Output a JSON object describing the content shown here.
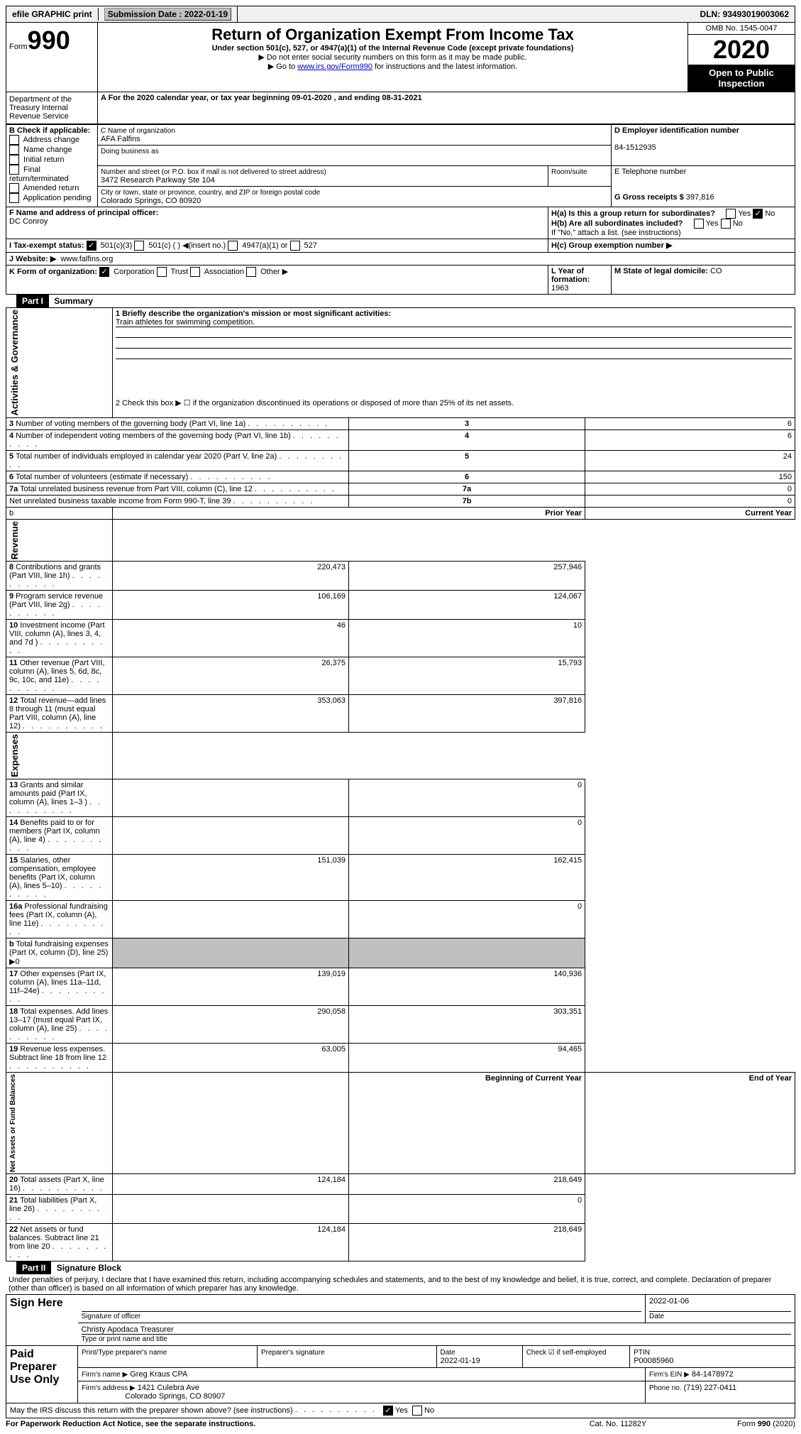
{
  "topbar": {
    "efile": "efile GRAPHIC print",
    "subdate_label": "Submission Date :",
    "subdate": "2022-01-19",
    "dln_label": "DLN:",
    "dln": "93493019003062"
  },
  "header": {
    "form_prefix": "Form",
    "form_num": "990",
    "title": "Return of Organization Exempt From Income Tax",
    "subtitle": "Under section 501(c), 527, or 4947(a)(1) of the Internal Revenue Code (except private foundations)",
    "instr1": "Do not enter social security numbers on this form as it may be made public.",
    "instr2_a": "Go to ",
    "instr2_link": "www.irs.gov/Form990",
    "instr2_b": " for instructions and the latest information.",
    "omb": "OMB No. 1545-0047",
    "year": "2020",
    "open": "Open to Public Inspection",
    "dept": "Department of the Treasury Internal Revenue Service"
  },
  "a_line": {
    "prefix": "A For the 2020 calendar year, or tax year beginning ",
    "begin": "09-01-2020",
    "mid": " , and ending ",
    "end": "08-31-2021"
  },
  "b": {
    "label": "B Check if applicable:",
    "opts": [
      "Address change",
      "Name change",
      "Initial return",
      "Final return/terminated",
      "Amended return",
      "Application pending"
    ]
  },
  "c": {
    "label_name": "C Name of organization",
    "name": "AFA Falfins",
    "dba_label": "Doing business as",
    "addr_label": "Number and street (or P.O. box if mail is not delivered to street address)",
    "room_label": "Room/suite",
    "addr": "3472 Research Parkway Ste 104",
    "city_label": "City or town, state or province, country, and ZIP or foreign postal code",
    "city": "Colorado Springs, CO  80920"
  },
  "d": {
    "label": "D Employer identification number",
    "value": "84-1512935"
  },
  "e": {
    "label": "E Telephone number"
  },
  "g": {
    "label": "G Gross receipts $",
    "value": "397,816"
  },
  "f": {
    "label": "F Name and address of principal officer:",
    "name": "DC Conroy"
  },
  "h": {
    "a": "H(a) Is this a group return for subordinates?",
    "b": "H(b) Are all subordinates included?",
    "note": "If \"No,\" attach a list. (see instructions)",
    "c": "H(c) Group exemption number ▶",
    "yes": "Yes",
    "no": "No"
  },
  "i": {
    "label": "I  Tax-exempt status:",
    "opts": [
      "501(c)(3)",
      "501(c) (  ) ◀(insert no.)",
      "4947(a)(1) or",
      "527"
    ]
  },
  "j": {
    "label": "J  Website: ▶",
    "value": "www.falfins.org"
  },
  "k": {
    "label": "K Form of organization:",
    "opts": [
      "Corporation",
      "Trust",
      "Association",
      "Other ▶"
    ]
  },
  "l": {
    "label": "L Year of formation:",
    "value": "1963"
  },
  "m": {
    "label": "M State of legal domicile:",
    "value": "CO"
  },
  "part1": {
    "hdr": "Part I",
    "title": "Summary",
    "line1_label": "1  Briefly describe the organization's mission or most significant activities:",
    "line1_value": "Train athletes for swimming competition.",
    "line2": "2  Check this box ▶ ☐  if the organization discontinued its operations or disposed of more than 25% of its net assets.",
    "gov_label": "Activities & Governance",
    "rev_label": "Revenue",
    "exp_label": "Expenses",
    "net_label": "Net Assets or Fund Balances",
    "prior_hdr": "Prior Year",
    "curr_hdr": "Current Year",
    "boy_hdr": "Beginning of Current Year",
    "eoy_hdr": "End of Year",
    "lines_gov": [
      {
        "n": "3",
        "t": "Number of voting members of the governing body (Part VI, line 1a)",
        "k": "3",
        "v": "6"
      },
      {
        "n": "4",
        "t": "Number of independent voting members of the governing body (Part VI, line 1b)",
        "k": "4",
        "v": "6"
      },
      {
        "n": "5",
        "t": "Total number of individuals employed in calendar year 2020 (Part V, line 2a)",
        "k": "5",
        "v": "24"
      },
      {
        "n": "6",
        "t": "Total number of volunteers (estimate if necessary)",
        "k": "6",
        "v": "150"
      },
      {
        "n": "7a",
        "t": "Total unrelated business revenue from Part VIII, column (C), line 12",
        "k": "7a",
        "v": "0"
      },
      {
        "n": "",
        "t": "Net unrelated business taxable income from Form 990-T, line 39",
        "k": "7b",
        "v": "0"
      }
    ],
    "lines_rev": [
      {
        "n": "8",
        "t": "Contributions and grants (Part VIII, line 1h)",
        "p": "220,473",
        "c": "257,946"
      },
      {
        "n": "9",
        "t": "Program service revenue (Part VIII, line 2g)",
        "p": "106,169",
        "c": "124,067"
      },
      {
        "n": "10",
        "t": "Investment income (Part VIII, column (A), lines 3, 4, and 7d )",
        "p": "46",
        "c": "10"
      },
      {
        "n": "11",
        "t": "Other revenue (Part VIII, column (A), lines 5, 6d, 8c, 9c, 10c, and 11e)",
        "p": "26,375",
        "c": "15,793"
      },
      {
        "n": "12",
        "t": "Total revenue—add lines 8 through 11 (must equal Part VIII, column (A), line 12)",
        "p": "353,063",
        "c": "397,816"
      }
    ],
    "lines_exp": [
      {
        "n": "13",
        "t": "Grants and similar amounts paid (Part IX, column (A), lines 1–3 )",
        "p": "",
        "c": "0"
      },
      {
        "n": "14",
        "t": "Benefits paid to or for members (Part IX, column (A), line 4)",
        "p": "",
        "c": "0"
      },
      {
        "n": "15",
        "t": "Salaries, other compensation, employee benefits (Part IX, column (A), lines 5–10)",
        "p": "151,039",
        "c": "162,415"
      },
      {
        "n": "16a",
        "t": "Professional fundraising fees (Part IX, column (A), line 11e)",
        "p": "",
        "c": "0"
      },
      {
        "n": "b",
        "t": "Total fundraising expenses (Part IX, column (D), line 25) ▶0",
        "p": "grey",
        "c": "grey"
      },
      {
        "n": "17",
        "t": "Other expenses (Part IX, column (A), lines 11a–11d, 11f–24e)",
        "p": "139,019",
        "c": "140,936"
      },
      {
        "n": "18",
        "t": "Total expenses. Add lines 13–17 (must equal Part IX, column (A), line 25)",
        "p": "290,058",
        "c": "303,351"
      },
      {
        "n": "19",
        "t": "Revenue less expenses. Subtract line 18 from line 12",
        "p": "63,005",
        "c": "94,465"
      }
    ],
    "lines_net": [
      {
        "n": "20",
        "t": "Total assets (Part X, line 16)",
        "p": "124,184",
        "c": "218,649"
      },
      {
        "n": "21",
        "t": "Total liabilities (Part X, line 26)",
        "p": "",
        "c": "0"
      },
      {
        "n": "22",
        "t": "Net assets or fund balances. Subtract line 21 from line 20",
        "p": "124,184",
        "c": "218,649"
      }
    ],
    "16b_note": "b"
  },
  "part2": {
    "hdr": "Part II",
    "title": "Signature Block",
    "decl": "Under penalties of perjury, I declare that I have examined this return, including accompanying schedules and statements, and to the best of my knowledge and belief, it is true, correct, and complete. Declaration of preparer (other than officer) is based on all information of which preparer has any knowledge.",
    "sign_here": "Sign Here",
    "sig_date": "2022-01-06",
    "sig_officer": "Signature of officer",
    "date_label": "Date",
    "officer_name": "Christy Apodaca  Treasurer",
    "type_name": "Type or print name and title",
    "paid": "Paid Preparer Use Only",
    "prep_name_label": "Print/Type preparer's name",
    "prep_sig_label": "Preparer's signature",
    "prep_date_label": "Date",
    "prep_date": "2022-01-19",
    "check_se": "Check ☑ if self-employed",
    "ptin_label": "PTIN",
    "ptin": "P00085960",
    "firm_name_label": "Firm's name    ▶",
    "firm_name": "Greg Kraus CPA",
    "firm_ein_label": "Firm's EIN ▶",
    "firm_ein": "84-1478972",
    "firm_addr_label": "Firm's address ▶",
    "firm_addr1": "1421 Culebra Ave",
    "firm_addr2": "Colorado Springs, CO  80907",
    "phone_label": "Phone no.",
    "phone": "(719) 227-0411",
    "discuss": "May the IRS discuss this return with the preparer shown above? (see instructions)",
    "yes": "Yes",
    "no": "No"
  },
  "footer": {
    "pra": "For Paperwork Reduction Act Notice, see the separate instructions.",
    "cat": "Cat. No. 11282Y",
    "form": "Form 990 (2020)"
  },
  "colors": {
    "link": "#0000cc",
    "grey": "#bfbfbf"
  }
}
